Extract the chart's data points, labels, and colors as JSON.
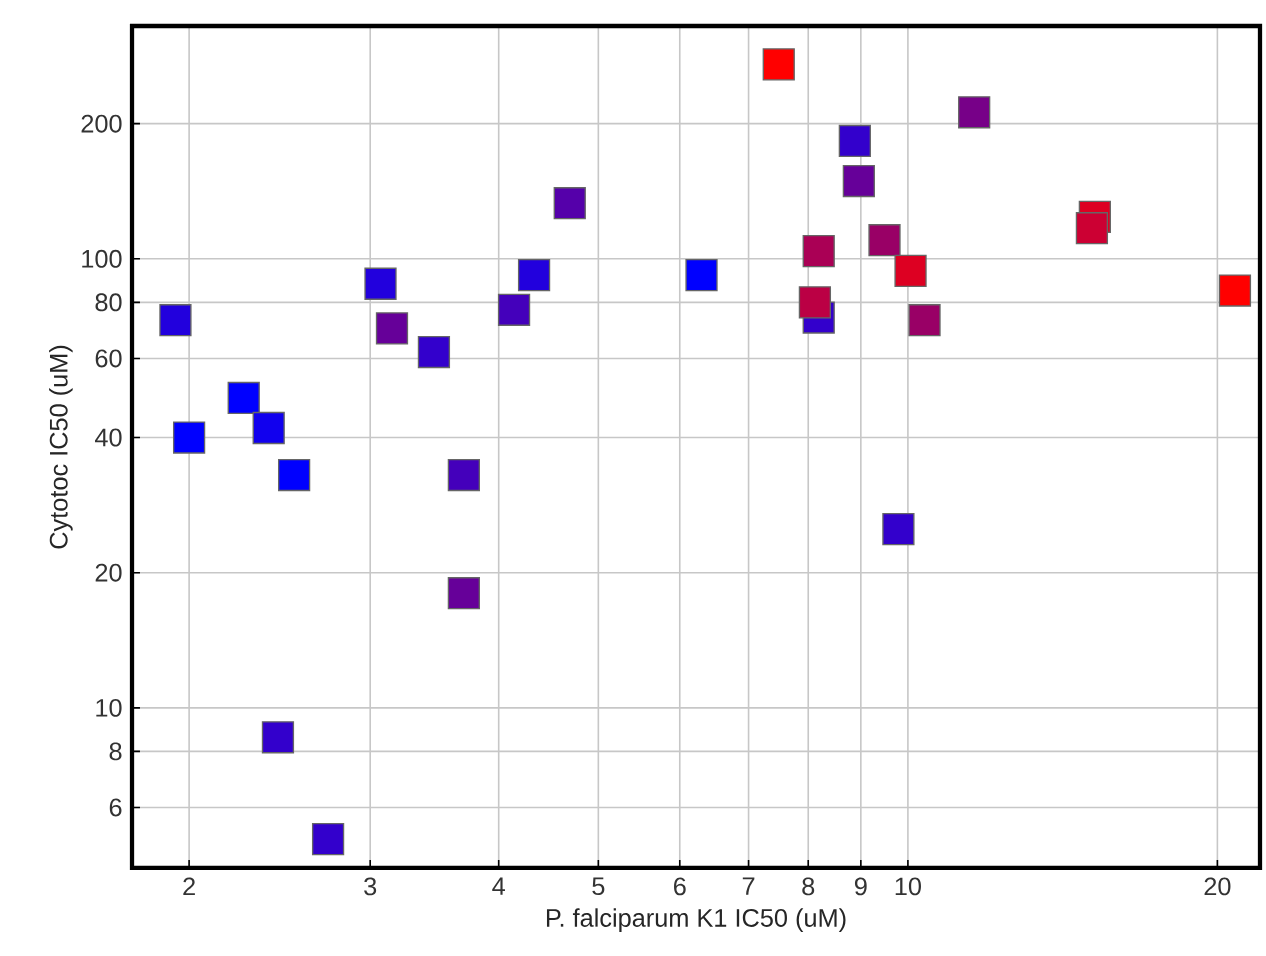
{
  "chart_data": {
    "type": "scatter",
    "xlabel": "P. falciparum K1 IC50 (uM)",
    "ylabel": "Cytotoc IC50 (uM)",
    "log": "xy",
    "grid": true,
    "marker": "square",
    "xlim": [
      1.76,
      22
    ],
    "ylim": [
      4.4,
      330
    ],
    "xticks": [
      2,
      3,
      4,
      5,
      6,
      7,
      8,
      9,
      10,
      20
    ],
    "yticks": [
      6,
      8,
      10,
      20,
      40,
      60,
      80,
      100,
      200
    ],
    "x": [
      1.94,
      2.0,
      2.26,
      2.39,
      2.53,
      2.44,
      2.73,
      3.07,
      3.15,
      3.46,
      3.7,
      3.7,
      4.14,
      4.33,
      4.69,
      6.3,
      7.49,
      8.19,
      8.12,
      8.19,
      8.88,
      8.96,
      9.49,
      10.06,
      10.38,
      9.79,
      11.6,
      15.2,
      15.1,
      20.8
    ],
    "values": [
      73,
      40,
      49,
      42,
      33,
      8.6,
      5.1,
      88,
      70,
      62,
      33,
      18,
      77,
      92,
      133,
      92,
      271,
      74,
      80,
      104,
      183,
      149,
      110,
      94,
      73,
      25,
      212,
      124,
      117,
      85
    ],
    "colors": [
      "#2200dd",
      "#0000ff",
      "#0000ff",
      "#1100ee",
      "#0000ff",
      "#3300cc",
      "#3300cc",
      "#2200dd",
      "#660099",
      "#3300cc",
      "#4400bb",
      "#660099",
      "#4400bb",
      "#2200dd",
      "#5500aa",
      "#0000ff",
      "#ff0000",
      "#3300cc",
      "#bb0044",
      "#aa0055",
      "#3300cc",
      "#660099",
      "#990066",
      "#dd0022",
      "#990066",
      "#3300cc",
      "#770088",
      "#dd0022",
      "#cc0033",
      "#ff0000"
    ]
  }
}
